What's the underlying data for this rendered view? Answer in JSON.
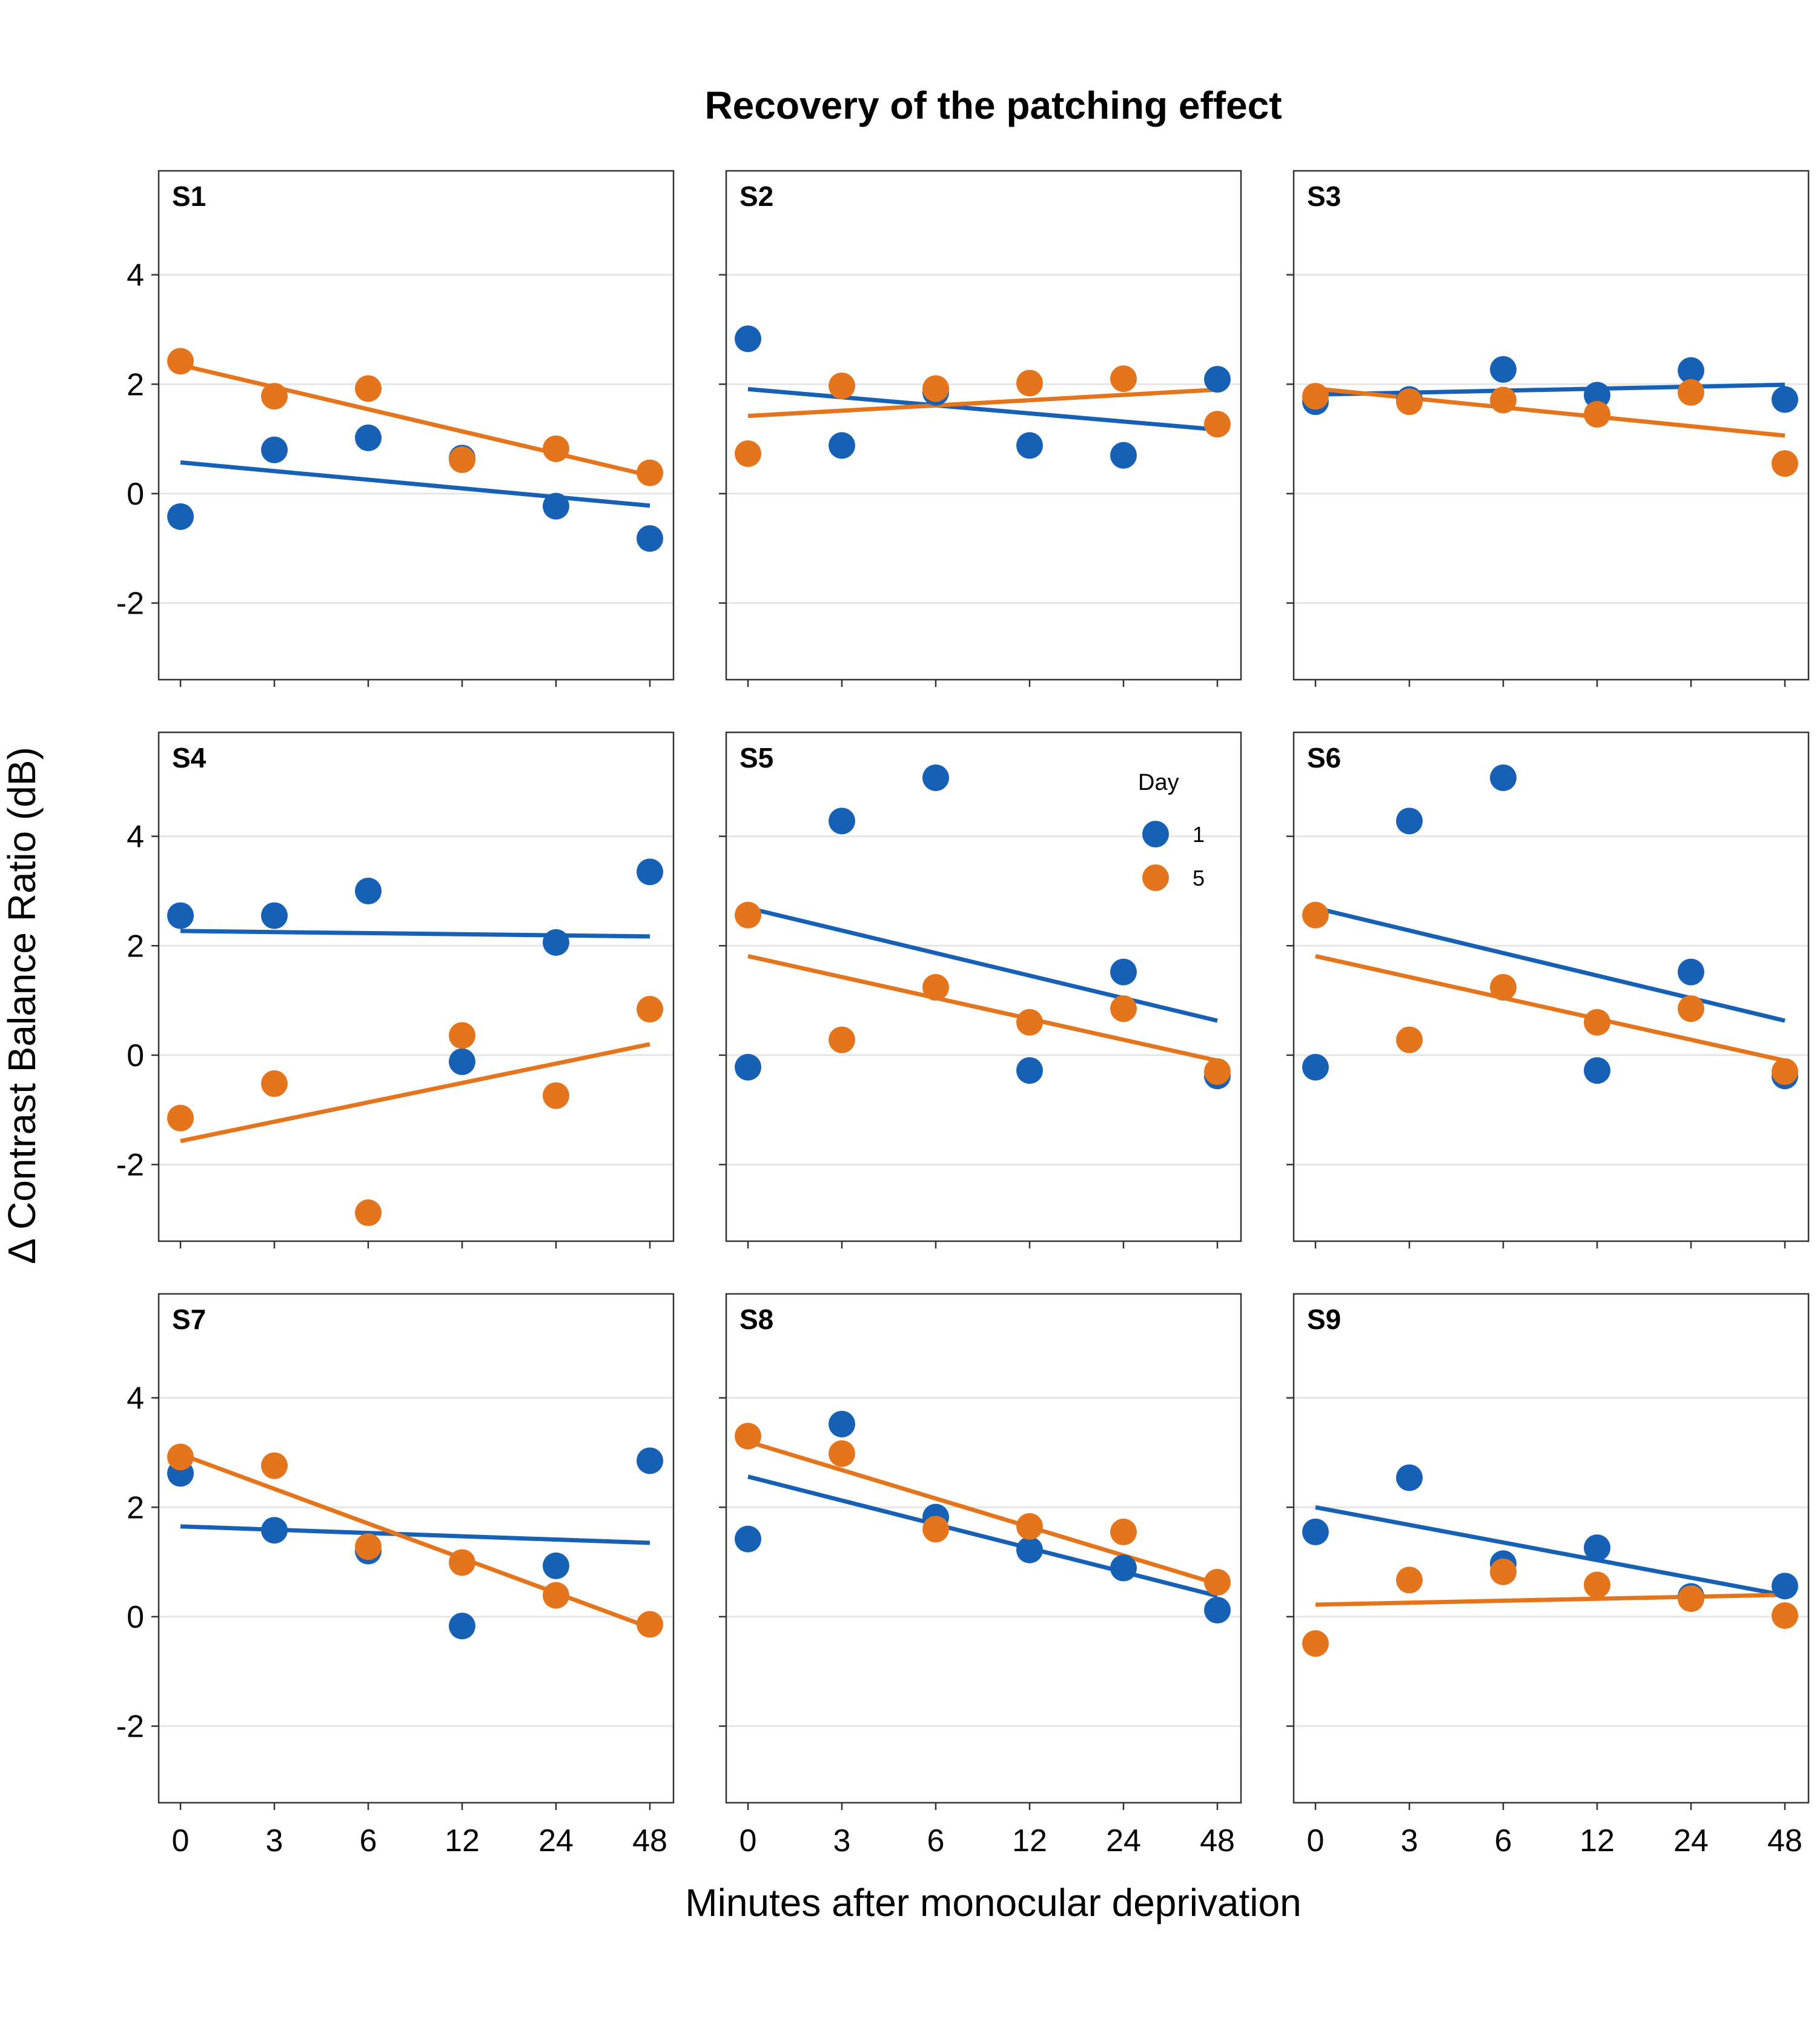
{
  "chart_data": {
    "type": "scatter",
    "title": "Recovery of the patching effect",
    "xlabel": "Minutes after monocular deprivation",
    "ylabel": "Δ Contrast Balance Ratio (dB)",
    "categories": [
      "0",
      "3",
      "6",
      "12",
      "24",
      "48"
    ],
    "y_ticks": [
      "-2",
      "0",
      "2",
      "4"
    ],
    "ylim": [
      -3.4,
      5.9
    ],
    "legend": {
      "title": "Day",
      "placement": "inside panel S5, top-right",
      "entries": [
        {
          "label": "1",
          "color": "#1661b5"
        },
        {
          "label": "5",
          "color": "#e5751d"
        }
      ]
    },
    "colors": {
      "day1": "#1661b5",
      "day5": "#e5751d",
      "grid": "#e6e6e6",
      "frame": "#333333"
    },
    "panels": [
      {
        "label": "S1",
        "day1": {
          "values": [
            -0.42,
            0.8,
            1.02,
            0.65,
            -0.23,
            -0.82
          ],
          "fit": [
            0.57,
            -0.22
          ]
        },
        "day5": {
          "values": [
            2.42,
            1.78,
            1.92,
            0.62,
            0.82,
            0.38
          ],
          "fit": [
            2.35,
            0.33
          ]
        }
      },
      {
        "label": "S2",
        "day1": {
          "values": [
            2.83,
            0.88,
            1.85,
            0.88,
            0.7,
            2.09
          ],
          "fit": [
            1.91,
            1.17
          ]
        },
        "day5": {
          "values": [
            0.73,
            1.97,
            1.92,
            2.02,
            2.1,
            1.27
          ],
          "fit": [
            1.42,
            1.9
          ]
        }
      },
      {
        "label": "S3",
        "day1": {
          "values": [
            1.68,
            1.72,
            2.27,
            1.8,
            2.25,
            1.72
          ],
          "fit": [
            1.81,
            1.99
          ]
        },
        "day5": {
          "values": [
            1.78,
            1.68,
            1.71,
            1.45,
            1.85,
            0.55
          ],
          "fit": [
            1.92,
            1.06
          ]
        }
      },
      {
        "label": "S4",
        "day1": {
          "values": [
            2.55,
            2.55,
            3.0,
            -0.12,
            2.06,
            3.35
          ],
          "fit": [
            2.27,
            2.17
          ]
        },
        "day5": {
          "values": [
            -1.15,
            -0.52,
            -2.88,
            0.36,
            -0.74,
            0.84
          ],
          "fit": [
            -1.57,
            0.2
          ]
        }
      },
      {
        "label": "S5",
        "day1": {
          "values": [
            -0.22,
            4.28,
            5.07,
            -0.28,
            1.52,
            -0.38
          ],
          "fit": [
            2.69,
            0.63
          ]
        },
        "day5": {
          "values": [
            2.56,
            0.28,
            1.24,
            0.6,
            0.85,
            -0.3
          ],
          "fit": [
            1.81,
            -0.1
          ]
        }
      },
      {
        "label": "S6",
        "day1": {
          "values": [
            -0.22,
            4.28,
            5.07,
            -0.28,
            1.52,
            -0.38
          ],
          "fit": [
            2.69,
            0.63
          ]
        },
        "day5": {
          "values": [
            2.56,
            0.28,
            1.24,
            0.6,
            0.85,
            -0.3
          ],
          "fit": [
            1.81,
            -0.1
          ]
        }
      },
      {
        "label": "S7",
        "day1": {
          "values": [
            2.62,
            1.58,
            1.2,
            -0.17,
            0.93,
            2.85
          ],
          "fit": [
            1.65,
            1.35
          ]
        },
        "day5": {
          "values": [
            2.92,
            2.76,
            1.28,
            0.99,
            0.39,
            -0.14
          ],
          "fit": [
            2.97,
            -0.2
          ]
        }
      },
      {
        "label": "S8",
        "day1": {
          "values": [
            1.42,
            3.52,
            1.82,
            1.22,
            0.89,
            0.12
          ],
          "fit": [
            2.56,
            0.38
          ]
        },
        "day5": {
          "values": [
            3.3,
            2.98,
            1.6,
            1.65,
            1.55,
            0.63
          ],
          "fit": [
            3.2,
            0.6
          ]
        }
      },
      {
        "label": "S9",
        "day1": {
          "values": [
            1.55,
            2.54,
            0.97,
            1.26,
            0.37,
            0.56
          ],
          "fit": [
            2.0,
            0.39
          ]
        },
        "day5": {
          "values": [
            -0.49,
            0.67,
            0.82,
            0.58,
            0.33,
            0.02
          ],
          "fit": [
            0.22,
            0.4
          ]
        }
      }
    ]
  }
}
